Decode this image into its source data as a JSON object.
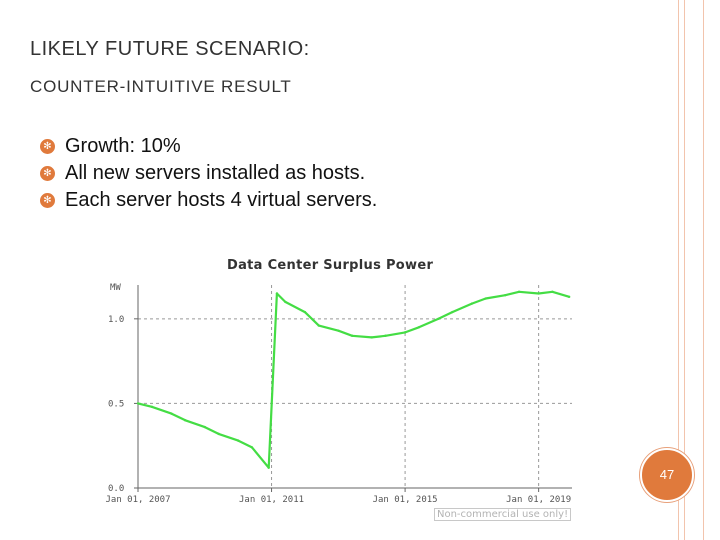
{
  "slide": {
    "title_line1": "LIKELY FUTURE SCENARIO:",
    "title_line2": "COUNTER-INTUITIVE RESULT",
    "bullets": [
      "Growth: 10%",
      "All new servers installed as hosts.",
      "Each server hosts 4 virtual servers."
    ],
    "page_number": "47",
    "watermark": "Non-commercial use only!"
  },
  "colors": {
    "accent": "#e07a3c",
    "line": "#44dd44",
    "rail": "#f2c4ad"
  },
  "icons": {
    "bullet": "gear-bullet-icon"
  },
  "chart_data": {
    "type": "line",
    "title": "Data Center Surplus Power",
    "ylabel": "MW",
    "ylim": [
      0,
      1.2
    ],
    "xlim": [
      "2007-01-01",
      "2020-01-01"
    ],
    "y_ticks": [
      {
        "value": 0,
        "label": "0.0"
      },
      {
        "value": 0.5,
        "label": "0.5"
      },
      {
        "value": 1.0,
        "label": "1.0"
      }
    ],
    "x_ticks": [
      {
        "value": "2007-01-01",
        "label": "Jan 01, 2007"
      },
      {
        "value": "2011-01-01",
        "label": "Jan 01, 2011"
      },
      {
        "value": "2015-01-01",
        "label": "Jan 01, 2015"
      },
      {
        "value": "2019-01-01",
        "label": "Jan 01, 2019"
      }
    ],
    "grid": true,
    "series": [
      {
        "x": [
          "2007-01-01",
          "2007-06-01",
          "2008-01-01",
          "2008-06-01",
          "2009-01-01",
          "2009-06-01",
          "2010-01-01",
          "2010-06-01",
          "2010-12-01",
          "2011-03-01",
          "2011-06-01",
          "2012-01-01",
          "2012-06-01",
          "2013-01-01",
          "2013-06-01",
          "2014-01-01",
          "2014-06-01",
          "2015-01-01",
          "2015-06-01",
          "2016-01-01",
          "2016-06-01",
          "2017-01-01",
          "2017-06-01",
          "2018-01-01",
          "2018-06-01",
          "2019-01-01",
          "2019-06-01",
          "2019-12-01"
        ],
        "y": [
          0.5,
          0.48,
          0.44,
          0.4,
          0.36,
          0.32,
          0.28,
          0.24,
          0.12,
          1.15,
          1.1,
          1.04,
          0.96,
          0.93,
          0.9,
          0.89,
          0.9,
          0.92,
          0.95,
          1.0,
          1.04,
          1.09,
          1.12,
          1.14,
          1.16,
          1.15,
          1.16,
          1.13
        ]
      }
    ]
  }
}
